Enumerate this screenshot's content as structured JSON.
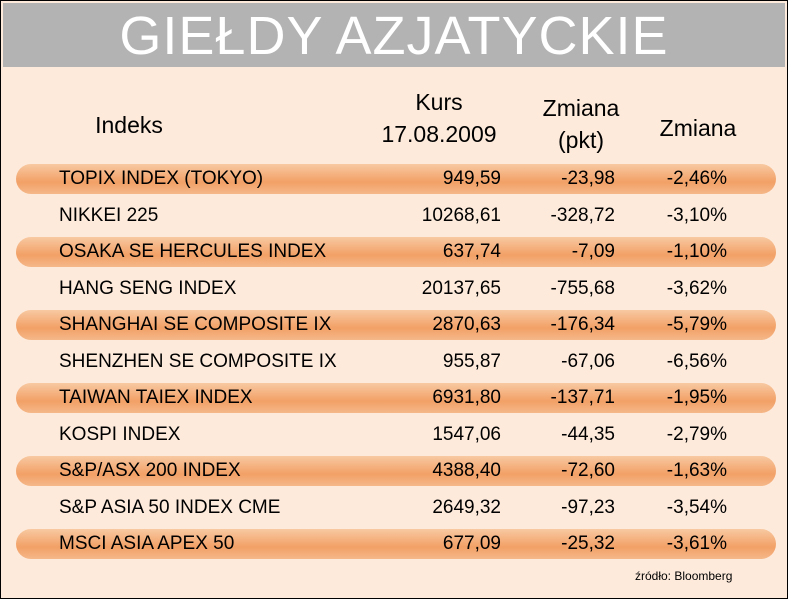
{
  "header": {
    "title": "GIEŁDY AZJATYCKIE"
  },
  "table": {
    "columns": [
      [
        "Indeks"
      ],
      [
        "Kurs",
        "17.08.2009"
      ],
      [
        "Zmiana",
        "(pkt)"
      ],
      [
        "Zmiana"
      ]
    ],
    "rows": [
      [
        "TOPIX INDEX (TOKYO)",
        "949,59",
        "-23,98",
        "-2,46%"
      ],
      [
        "NIKKEI 225",
        "10268,61",
        "-328,72",
        "-3,10%"
      ],
      [
        "OSAKA SE HERCULES INDEX",
        "637,74",
        "-7,09",
        "-1,10%"
      ],
      [
        "HANG SENG INDEX",
        "20137,65",
        "-755,68",
        "-3,62%"
      ],
      [
        "SHANGHAI SE COMPOSITE IX",
        "2870,63",
        "-176,34",
        "-5,79%"
      ],
      [
        "SHENZHEN SE COMPOSITE IX",
        "955,87",
        "-67,06",
        "-6,56%"
      ],
      [
        "TAIWAN TAIEX INDEX",
        "6931,80",
        "-137,71",
        "-1,95%"
      ],
      [
        "KOSPI INDEX",
        "1547,06",
        "-44,35",
        "-2,79%"
      ],
      [
        "S&P/ASX 200 INDEX",
        "4388,40",
        "-72,60",
        "-1,63%"
      ],
      [
        "S&P ASIA 50 INDEX CME",
        "2649,32",
        "-97,23",
        "-3,54%"
      ],
      [
        "MSCI ASIA APEX 50",
        "677,09",
        "-25,32",
        "-3,61%"
      ]
    ]
  },
  "source": "źródło: Bloomberg"
}
